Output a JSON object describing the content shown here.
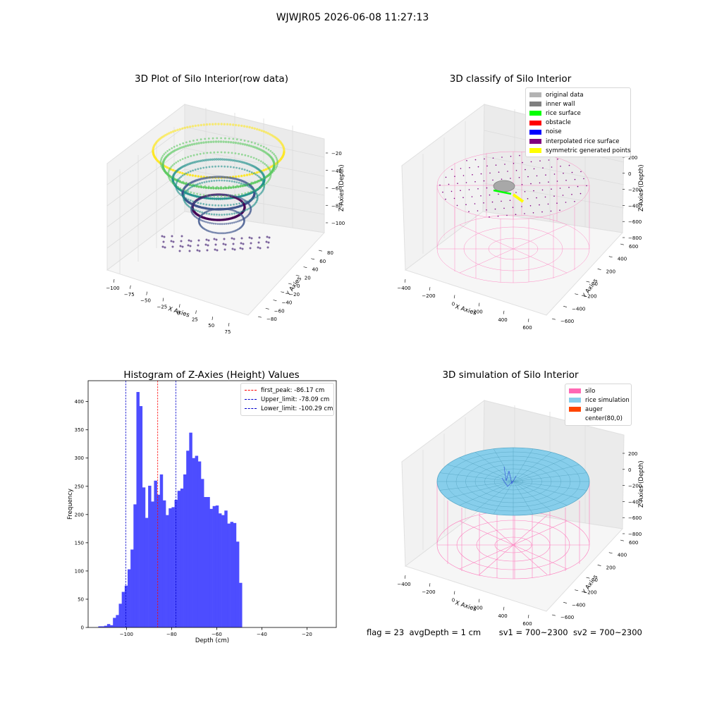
{
  "figure_title": "WJWJR05 2026-06-08 11:27:13",
  "footer": {
    "flag": "flag = 23",
    "avg_depth": "avgDepth = 1 cm",
    "sv1": "sv1 = 700~2300",
    "sv2": "sv2 = 700~2300"
  },
  "colors": {
    "hist_bar": "#4d4dff",
    "first_peak_line": "#ff0000",
    "limit_lines": "#0000cc",
    "silo_wire": "#ff69b4",
    "rice_surface": "#87ceeb"
  },
  "panels": {
    "raw": {
      "title": "3D Plot of Silo Interior(row data)",
      "xlabel": "X Axies",
      "ylabel": "Y Axies",
      "zlabel": "Z Axies (Depth)",
      "xticks": [
        "−100",
        "−75",
        "−50",
        "−25",
        "0",
        "25",
        "50",
        "75"
      ],
      "yticks": [
        "−80",
        "−60",
        "−40",
        "−20",
        "0",
        "20",
        "40",
        "60",
        "80"
      ],
      "zticks": [
        "−20",
        "−40",
        "−60",
        "−80",
        "−100"
      ]
    },
    "classify": {
      "title": "3D classify of Silo Interior",
      "xlabel": "X Axies",
      "ylabel": "Y Axies",
      "zlabel": "Z Axies (Depth)",
      "xticks": [
        "−400",
        "−200",
        "0",
        "200",
        "400",
        "600"
      ],
      "yticks": [
        "−600",
        "−400",
        "−200",
        "0",
        "200",
        "400",
        "600"
      ],
      "zticks": [
        "200",
        "0",
        "−200",
        "−400",
        "−600",
        "−800"
      ],
      "legend": [
        {
          "label": "original data",
          "color": "#b3b3b3"
        },
        {
          "label": "inner wall",
          "color": "#808080"
        },
        {
          "label": "rice surface",
          "color": "#00ff00"
        },
        {
          "label": "obstacle",
          "color": "#ff0000"
        },
        {
          "label": "noise",
          "color": "#0000ff"
        },
        {
          "label": "interpolated rice surface",
          "color": "#800080"
        },
        {
          "label": "symmetric generated points",
          "color": "#ffff00"
        }
      ]
    },
    "simulation": {
      "title": "3D simulation of Silo Interior",
      "xlabel": "X Axies",
      "ylabel": "Y Axies",
      "zlabel": "Z Axies (Depth)",
      "xticks": [
        "−400",
        "−200",
        "0",
        "200",
        "400",
        "600"
      ],
      "yticks": [
        "−600",
        "−400",
        "−200",
        "0",
        "200",
        "400",
        "600"
      ],
      "zticks": [
        "200",
        "0",
        "−200",
        "−400",
        "−600",
        "−800"
      ],
      "legend": [
        {
          "label": "silo",
          "color": "#ff69b4"
        },
        {
          "label": "rice simulation",
          "color": "#87ceeb"
        },
        {
          "label": "auger",
          "color": "#ff4500"
        },
        {
          "label": "center(80,0)",
          "color": ""
        }
      ]
    }
  },
  "chart_data": {
    "type": "bar",
    "title": "Histogram of Z-Axies (Height) Values",
    "xlabel": "Depth (cm)",
    "ylabel": "Frequency",
    "xlim": [
      -117,
      -7
    ],
    "ylim": [
      0,
      437
    ],
    "xticks": [
      -100,
      -80,
      -60,
      -40,
      -20
    ],
    "yticks": [
      0,
      50,
      100,
      150,
      200,
      250,
      300,
      350,
      400
    ],
    "grid": false,
    "legend_position": "top-right",
    "bin_start": -112.5,
    "bin_width": 1.3,
    "values": [
      2,
      2,
      3,
      6,
      4,
      17,
      22,
      42,
      63,
      74,
      103,
      138,
      218,
      417,
      392,
      248,
      194,
      251,
      223,
      260,
      235,
      271,
      225,
      199,
      211,
      213,
      226,
      242,
      246,
      271,
      313,
      345,
      300,
      304,
      294,
      263,
      231,
      231,
      210,
      215,
      216,
      202,
      199,
      207,
      184,
      187,
      185,
      152,
      79
    ],
    "reference_lines": [
      {
        "name": "first_peak: -86.17 cm",
        "x": -86.17,
        "color": "#ff0000"
      },
      {
        "name": "Upper_limit: -78.09 cm",
        "x": -78.09,
        "color": "#0000cc"
      },
      {
        "name": "Lower_limit: -100.29 cm",
        "x": -100.29,
        "color": "#0000cc"
      }
    ]
  }
}
